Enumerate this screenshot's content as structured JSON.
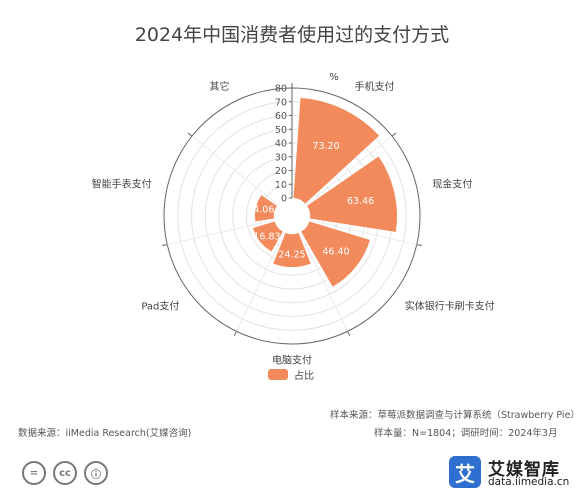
{
  "chart_data": {
    "type": "polar-bar",
    "title": "2024年中国消费者使用过的支付方式",
    "unit": "%",
    "radial_ticks": [
      0,
      10,
      20,
      30,
      40,
      50,
      60,
      70,
      80
    ],
    "rmax": 80,
    "categories": [
      "手机支付",
      "现金支付",
      "实体银行卡刷卡支付",
      "电脑支付",
      "Pad支付",
      "智能手表支付",
      "其它"
    ],
    "series": [
      {
        "name": "占比",
        "values": [
          73.2,
          63.46,
          46.4,
          24.25,
          16.83,
          14.06,
          0.22
        ]
      }
    ],
    "value_labels": [
      "73.20",
      "63.46",
      "46.40",
      "24.25",
      "16.83",
      "14.06",
      "0.22"
    ],
    "legend_position": "bottom",
    "color": "#F28A5C"
  },
  "footer": {
    "sample_source": "样本来源：草莓派数据调查与计算系统（Strawberry Pie）",
    "data_source": "数据来源：iiMedia Research(艾媒咨询)",
    "sample_size": "样本量：N=1804；调研时间：2024年3月"
  },
  "license_icons": [
    "=",
    "cc",
    "ⓘ"
  ],
  "brand": {
    "glyph": "艾",
    "name": "艾媒智库",
    "url": "data.iimedia.cn",
    "color": "#2E6FCF"
  }
}
